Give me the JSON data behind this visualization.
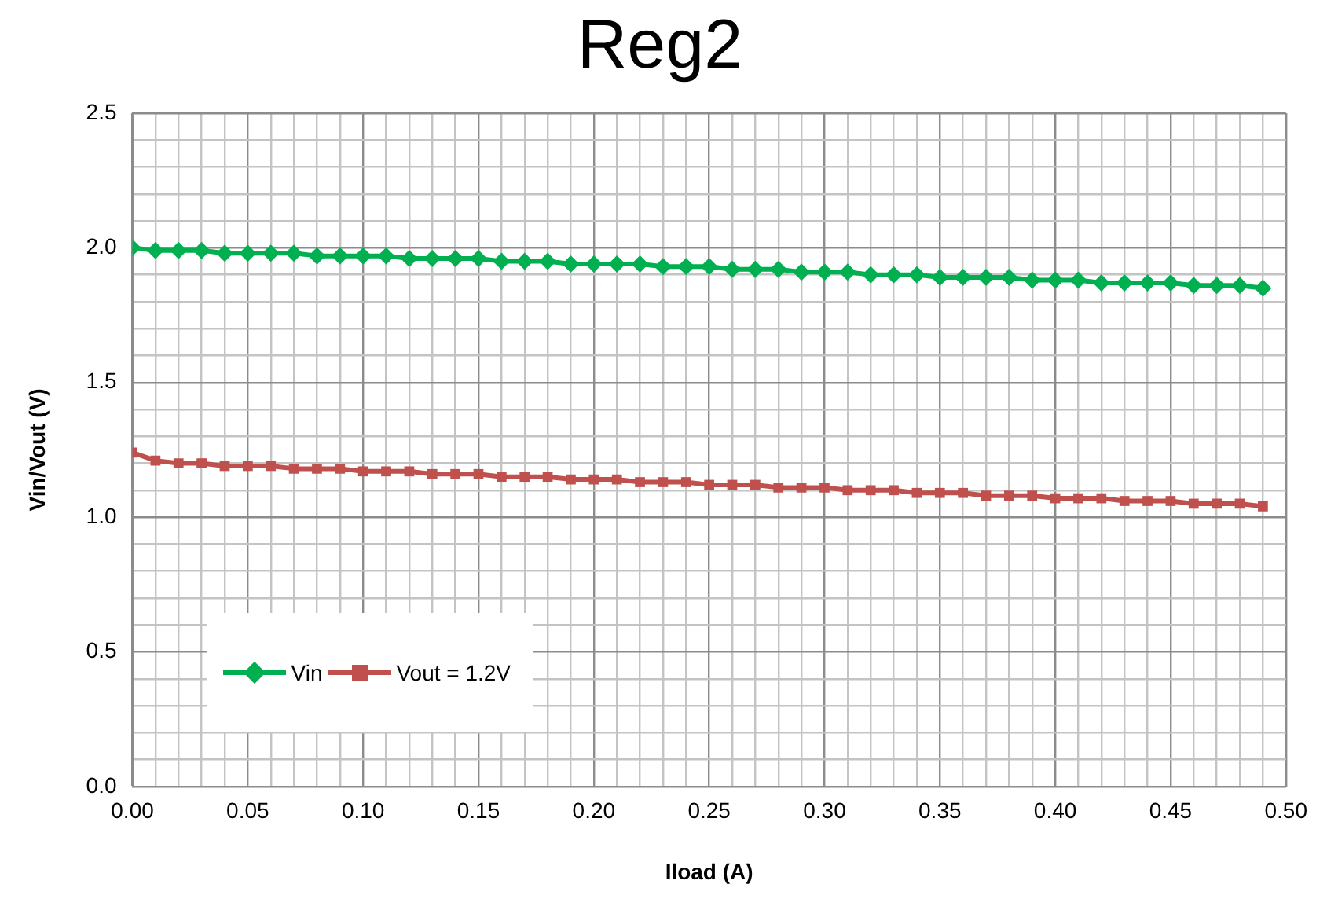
{
  "chart_data": {
    "type": "line",
    "title": "Reg2",
    "xlabel": "Iload (A)",
    "ylabel": "Vin/Vout (V)",
    "x": [
      0,
      0.01,
      0.02,
      0.03,
      0.04,
      0.05,
      0.06,
      0.07,
      0.08,
      0.09,
      0.1,
      0.11,
      0.12,
      0.13,
      0.14,
      0.15,
      0.16,
      0.17,
      0.18,
      0.19,
      0.2,
      0.21,
      0.22,
      0.23,
      0.24,
      0.25,
      0.26,
      0.27,
      0.28,
      0.29,
      0.3,
      0.31,
      0.32,
      0.33,
      0.34,
      0.35,
      0.36,
      0.37,
      0.38,
      0.39,
      0.4,
      0.41,
      0.42,
      0.43,
      0.44,
      0.45,
      0.46,
      0.47,
      0.48,
      0.49
    ],
    "series": [
      {
        "name": "Vin",
        "color": "#00b050",
        "marker": "diamond",
        "values": [
          2.0,
          1.99,
          1.99,
          1.99,
          1.98,
          1.98,
          1.98,
          1.98,
          1.97,
          1.97,
          1.97,
          1.97,
          1.96,
          1.96,
          1.96,
          1.96,
          1.95,
          1.95,
          1.95,
          1.94,
          1.94,
          1.94,
          1.94,
          1.93,
          1.93,
          1.93,
          1.92,
          1.92,
          1.92,
          1.91,
          1.91,
          1.91,
          1.9,
          1.9,
          1.9,
          1.89,
          1.89,
          1.89,
          1.89,
          1.88,
          1.88,
          1.88,
          1.87,
          1.87,
          1.87,
          1.87,
          1.86,
          1.86,
          1.86,
          1.85
        ]
      },
      {
        "name": "Vout = 1.2V",
        "color": "#c0504d",
        "marker": "square",
        "values": [
          1.24,
          1.21,
          1.2,
          1.2,
          1.19,
          1.19,
          1.19,
          1.18,
          1.18,
          1.18,
          1.17,
          1.17,
          1.17,
          1.16,
          1.16,
          1.16,
          1.15,
          1.15,
          1.15,
          1.14,
          1.14,
          1.14,
          1.13,
          1.13,
          1.13,
          1.12,
          1.12,
          1.12,
          1.11,
          1.11,
          1.11,
          1.1,
          1.1,
          1.1,
          1.09,
          1.09,
          1.09,
          1.08,
          1.08,
          1.08,
          1.07,
          1.07,
          1.07,
          1.06,
          1.06,
          1.06,
          1.05,
          1.05,
          1.05,
          1.04
        ]
      }
    ],
    "xlim": [
      0,
      0.5
    ],
    "xticks": [
      {
        "value": 0,
        "label": "0.00"
      },
      {
        "value": 0.01,
        "label": null
      },
      {
        "value": 0.02,
        "label": null
      },
      {
        "value": 0.03,
        "label": null
      },
      {
        "value": 0.04,
        "label": null
      },
      {
        "value": 0.05,
        "label": "0.05"
      },
      {
        "value": 0.06,
        "label": null
      },
      {
        "value": 0.07,
        "label": null
      },
      {
        "value": 0.08,
        "label": null
      },
      {
        "value": 0.09,
        "label": null
      },
      {
        "value": 0.1,
        "label": "0.10"
      },
      {
        "value": 0.11,
        "label": null
      },
      {
        "value": 0.12,
        "label": null
      },
      {
        "value": 0.13,
        "label": null
      },
      {
        "value": 0.14,
        "label": null
      },
      {
        "value": 0.15,
        "label": "0.15"
      },
      {
        "value": 0.16,
        "label": null
      },
      {
        "value": 0.17,
        "label": null
      },
      {
        "value": 0.18,
        "label": null
      },
      {
        "value": 0.19,
        "label": null
      },
      {
        "value": 0.2,
        "label": "0.20"
      },
      {
        "value": 0.21,
        "label": null
      },
      {
        "value": 0.22,
        "label": null
      },
      {
        "value": 0.23,
        "label": null
      },
      {
        "value": 0.24,
        "label": null
      },
      {
        "value": 0.25,
        "label": "0.25"
      },
      {
        "value": 0.26,
        "label": null
      },
      {
        "value": 0.27,
        "label": null
      },
      {
        "value": 0.28,
        "label": null
      },
      {
        "value": 0.29,
        "label": null
      },
      {
        "value": 0.3,
        "label": "0.30"
      },
      {
        "value": 0.31,
        "label": null
      },
      {
        "value": 0.32,
        "label": null
      },
      {
        "value": 0.33,
        "label": null
      },
      {
        "value": 0.34,
        "label": null
      },
      {
        "value": 0.35,
        "label": "0.35"
      },
      {
        "value": 0.36,
        "label": null
      },
      {
        "value": 0.37,
        "label": null
      },
      {
        "value": 0.38,
        "label": null
      },
      {
        "value": 0.39,
        "label": null
      },
      {
        "value": 0.4,
        "label": "0.40"
      },
      {
        "value": 0.41,
        "label": null
      },
      {
        "value": 0.42,
        "label": null
      },
      {
        "value": 0.43,
        "label": null
      },
      {
        "value": 0.44,
        "label": null
      },
      {
        "value": 0.45,
        "label": "0.45"
      },
      {
        "value": 0.46,
        "label": null
      },
      {
        "value": 0.47,
        "label": null
      },
      {
        "value": 0.48,
        "label": null
      },
      {
        "value": 0.49,
        "label": null
      },
      {
        "value": 0.5,
        "label": "0.50"
      }
    ],
    "ylim": [
      0,
      2.5
    ],
    "yticks": [
      {
        "value": 0,
        "label": "0.0"
      },
      {
        "value": 0.1,
        "label": null
      },
      {
        "value": 0.2,
        "label": null
      },
      {
        "value": 0.3,
        "label": null
      },
      {
        "value": 0.4,
        "label": null
      },
      {
        "value": 0.5,
        "label": "0.5"
      },
      {
        "value": 0.6,
        "label": null
      },
      {
        "value": 0.7,
        "label": null
      },
      {
        "value": 0.8,
        "label": null
      },
      {
        "value": 0.9,
        "label": null
      },
      {
        "value": 1,
        "label": "1.0"
      },
      {
        "value": 1.1,
        "label": null
      },
      {
        "value": 1.2,
        "label": null
      },
      {
        "value": 1.3,
        "label": null
      },
      {
        "value": 1.4,
        "label": null
      },
      {
        "value": 1.5,
        "label": "1.5"
      },
      {
        "value": 1.6,
        "label": null
      },
      {
        "value": 1.7,
        "label": null
      },
      {
        "value": 1.8,
        "label": null
      },
      {
        "value": 1.9,
        "label": null
      },
      {
        "value": 2,
        "label": "2.0"
      },
      {
        "value": 2.1,
        "label": null
      },
      {
        "value": 2.2,
        "label": null
      },
      {
        "value": 2.3,
        "label": null
      },
      {
        "value": 2.4,
        "label": null
      },
      {
        "value": 2.5,
        "label": "2.5"
      }
    ],
    "grid": true,
    "legend": "bottom left",
    "line_style": "solid"
  }
}
